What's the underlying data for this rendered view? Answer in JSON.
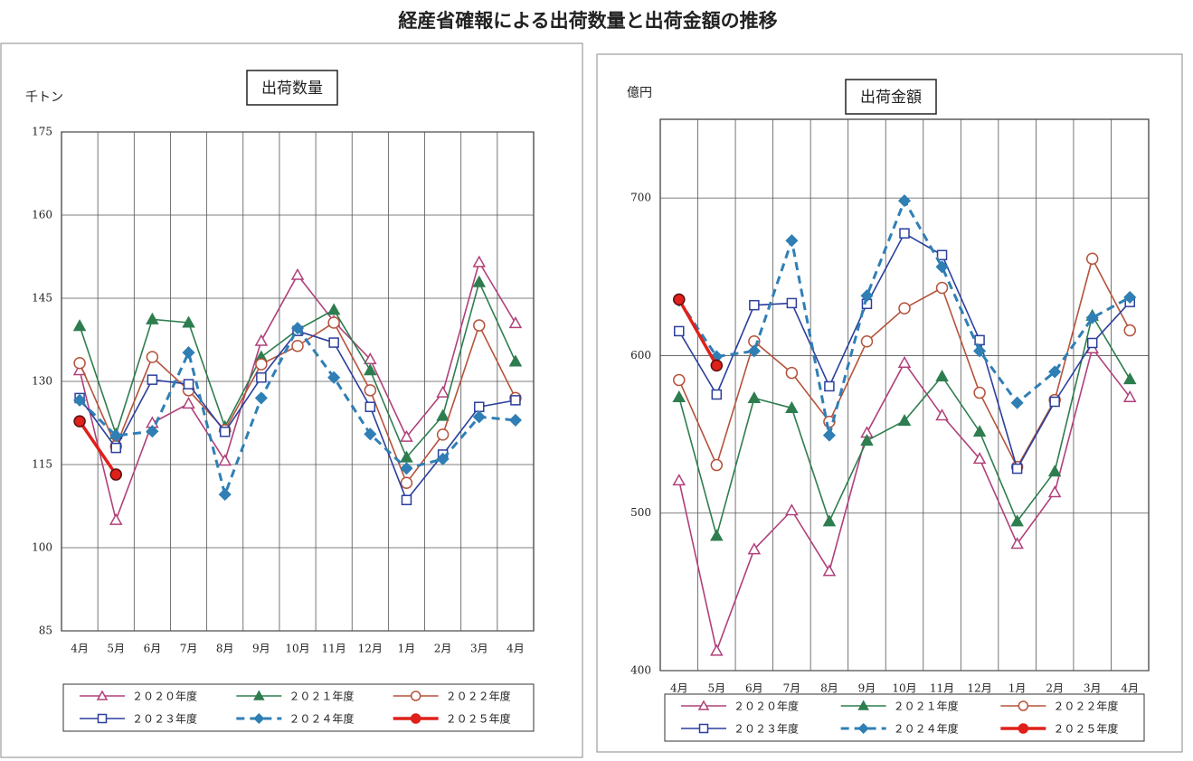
{
  "title": "経産省確報による出荷数量と出荷金額の推移",
  "chart_data": [
    {
      "type": "line",
      "title": "出荷数量",
      "ylabel": "千トン",
      "categories": [
        "4月",
        "5月",
        "6月",
        "7月",
        "8月",
        "9月",
        "10月",
        "11月",
        "12月",
        "1月",
        "2月",
        "3月",
        "4月"
      ],
      "ylim": [
        85,
        175
      ],
      "yticks": [
        85,
        100,
        115,
        130,
        145,
        160,
        175
      ],
      "grid": true,
      "series": [
        {
          "name": "２０２０年度",
          "color": "#b0407a",
          "marker": "triangle",
          "marker_filled": false,
          "line_style": "solid",
          "values": [
            132,
            105,
            122.5,
            126,
            115.7,
            137.3,
            149.2,
            140.8,
            134,
            120,
            128,
            151.5,
            140.5
          ]
        },
        {
          "name": "２０２１年度",
          "color": "#2e7d4f",
          "marker": "triangle",
          "marker_filled": true,
          "line_style": "solid",
          "values": [
            140,
            120.5,
            141.2,
            140.6,
            121.8,
            134.4,
            139.3,
            142.9,
            132,
            116.3,
            123.8,
            147.9,
            133.6
          ]
        },
        {
          "name": "２０２２年度",
          "color": "#b5533c",
          "marker": "circle",
          "marker_filled": false,
          "line_style": "solid",
          "values": [
            133.3,
            118.3,
            134.4,
            128.4,
            121.2,
            133.1,
            136.4,
            140.6,
            128.4,
            111.7,
            120.4,
            140.1,
            127
          ]
        },
        {
          "name": "２０２３年度",
          "color": "#2b3f9c",
          "marker": "square",
          "marker_filled": false,
          "line_style": "solid",
          "values": [
            127,
            118,
            130.3,
            129.5,
            120.9,
            130.7,
            139.1,
            137,
            125.4,
            108.6,
            116.8,
            125.4,
            126.6
          ]
        },
        {
          "name": "２０２４年度",
          "color": "#2f7fb5",
          "marker": "diamond",
          "marker_filled": true,
          "line_style": "dashed",
          "values": [
            126.6,
            120.2,
            121,
            135.2,
            109.6,
            127,
            139.6,
            130.7,
            120.5,
            114.3,
            116,
            123.6,
            123
          ]
        },
        {
          "name": "２０２５年度",
          "color": "#e0201a",
          "marker": "circle",
          "marker_filled": true,
          "line_style": "solid",
          "values": [
            122.8,
            113.2,
            null,
            null,
            null,
            null,
            null,
            null,
            null,
            null,
            null,
            null,
            null
          ]
        }
      ]
    },
    {
      "type": "line",
      "title": "出荷金額",
      "ylabel": "億円",
      "categories": [
        "4月",
        "5月",
        "6月",
        "7月",
        "8月",
        "9月",
        "10月",
        "11月",
        "12月",
        "1月",
        "2月",
        "3月",
        "4月"
      ],
      "ylim": [
        400,
        750
      ],
      "yticks": [
        400,
        500,
        600,
        700
      ],
      "grid": true,
      "series": [
        {
          "name": "２０２０年度",
          "color": "#b0407a",
          "marker": "triangle",
          "marker_filled": false,
          "line_style": "solid",
          "values": [
            520.7,
            412.6,
            477,
            501.7,
            463.2,
            551,
            595.4,
            562,
            534.5,
            480.5,
            513.2,
            604.6,
            573.6
          ]
        },
        {
          "name": "２０２１年度",
          "color": "#2e7d4f",
          "marker": "triangle",
          "marker_filled": true,
          "line_style": "solid",
          "values": [
            573.6,
            485.6,
            573,
            566.7,
            494.8,
            546,
            558.6,
            586.8,
            551.7,
            494.8,
            526.4,
            625.3,
            585
          ]
        },
        {
          "name": "２０２２年度",
          "color": "#b5533c",
          "marker": "circle",
          "marker_filled": false,
          "line_style": "solid",
          "values": [
            584.5,
            530.5,
            609,
            589,
            558,
            609,
            630,
            643,
            576.4,
            529.3,
            571.8,
            661.5,
            616
          ]
        },
        {
          "name": "２０２３年度",
          "color": "#2b3f9c",
          "marker": "square",
          "marker_filled": false,
          "line_style": "solid",
          "values": [
            615.5,
            575.3,
            632,
            633.3,
            580.5,
            632.8,
            677.6,
            663.8,
            609.8,
            528.2,
            570.7,
            608,
            634
          ]
        },
        {
          "name": "２０２４年度",
          "color": "#2f7fb5",
          "marker": "diamond",
          "marker_filled": true,
          "line_style": "dashed",
          "values": [
            635,
            599.4,
            602.9,
            673,
            549.4,
            638,
            698.3,
            656.3,
            602.9,
            570,
            589.7,
            624,
            637
          ]
        },
        {
          "name": "２０２５年度",
          "color": "#e0201a",
          "marker": "circle",
          "marker_filled": true,
          "line_style": "solid",
          "values": [
            635.6,
            593.7,
            null,
            null,
            null,
            null,
            null,
            null,
            null,
            null,
            null,
            null,
            null
          ]
        }
      ]
    }
  ]
}
